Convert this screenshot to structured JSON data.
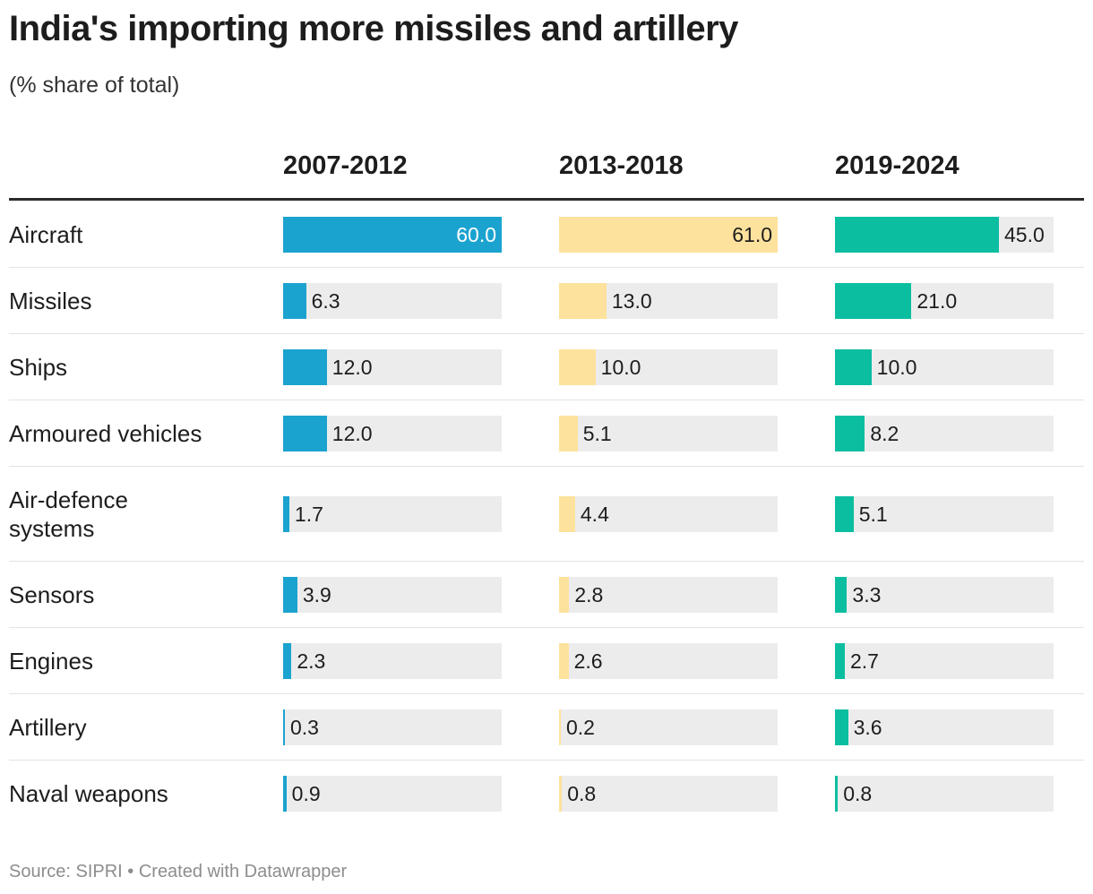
{
  "header": {
    "title": "India's importing more missiles and artillery",
    "subtitle": "(% share of total)"
  },
  "footer": {
    "source": "Source: SIPRI • Created with Datawrapper"
  },
  "colors": {
    "c2007_2012": "#1ba3d0",
    "c2013_2018": "#fde29d",
    "c2019_2024": "#0cbea0",
    "track": "#ececec"
  },
  "chart_data": {
    "type": "bar",
    "title": "India's importing more missiles and artillery",
    "subtitle": "(% share of total)",
    "unit": "% share of total",
    "xlim": [
      0,
      60
    ],
    "categories": [
      "Aircraft",
      "Missiles",
      "Ships",
      "Armoured vehicles",
      "Air-defence systems",
      "Sensors",
      "Engines",
      "Artillery",
      "Naval weapons"
    ],
    "category_lines": [
      [
        "Aircraft"
      ],
      [
        "Missiles"
      ],
      [
        "Ships"
      ],
      [
        "Armoured vehicles"
      ],
      [
        "Air-defence",
        "systems"
      ],
      [
        "Sensors"
      ],
      [
        "Engines"
      ],
      [
        "Artillery"
      ],
      [
        "Naval weapons"
      ]
    ],
    "series": [
      {
        "name": "2007-2012",
        "color": "#1ba3d0",
        "values": [
          60.0,
          6.3,
          12.0,
          12.0,
          1.7,
          3.9,
          2.3,
          0.3,
          0.9
        ],
        "labels": [
          "60.0",
          "6.3",
          "12.0",
          "12.0",
          "1.7",
          "3.9",
          "2.3",
          "0.3",
          "0.9"
        ]
      },
      {
        "name": "2013-2018",
        "color": "#fde29d",
        "values": [
          61.0,
          13.0,
          10.0,
          5.1,
          4.4,
          2.8,
          2.6,
          0.2,
          0.8
        ],
        "labels": [
          "61.0",
          "13.0",
          "10.0",
          "5.1",
          "4.4",
          "2.8",
          "2.6",
          "0.2",
          "0.8"
        ]
      },
      {
        "name": "2019-2024",
        "color": "#0cbea0",
        "values": [
          45.0,
          21.0,
          10.0,
          8.2,
          5.1,
          3.3,
          2.7,
          3.6,
          0.8
        ],
        "labels": [
          "45.0",
          "21.0",
          "10.0",
          "8.2",
          "5.1",
          "3.3",
          "2.7",
          "3.6",
          "0.8"
        ]
      }
    ],
    "source": "SIPRI"
  }
}
